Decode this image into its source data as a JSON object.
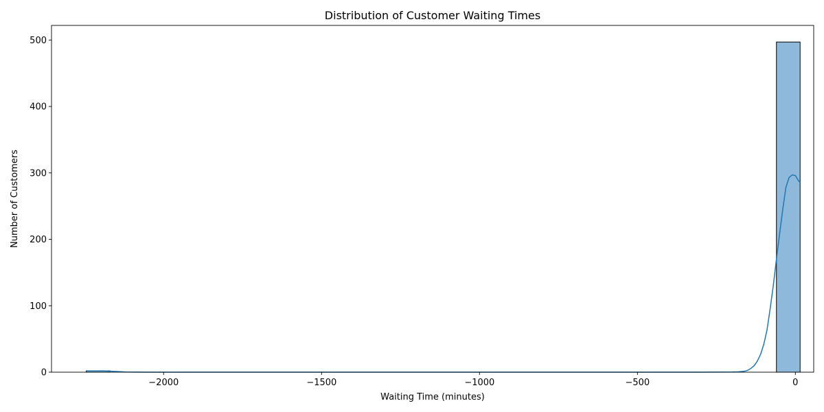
{
  "chart_data": {
    "type": "histogram",
    "title": "Distribution of Customer Waiting Times",
    "xlabel": "Waiting Time (minutes)",
    "ylabel": "Number of Customers",
    "xlim": [
      -2355,
      58
    ],
    "ylim": [
      0,
      522
    ],
    "xticks": [
      -2000,
      -1500,
      -1000,
      -500,
      0
    ],
    "xtick_labels": [
      "−2000",
      "−1500",
      "−1000",
      "−500",
      "0"
    ],
    "yticks": [
      0,
      100,
      200,
      300,
      400,
      500
    ],
    "ytick_labels": [
      "0",
      "100",
      "200",
      "300",
      "400",
      "500"
    ],
    "grid": false,
    "colors": {
      "bar_fill": "#8fb9da",
      "bar_edge": "#000000",
      "kde_line": "#1f77b4"
    },
    "bins": [
      {
        "x0": -2245,
        "x1": -2170,
        "count": 2
      },
      {
        "x0": -60,
        "x1": 15,
        "count": 497
      }
    ],
    "kde": {
      "x": [
        -2245,
        -2215,
        -2190,
        -2170,
        -2150,
        -2120,
        -2050,
        -1000,
        -300,
        -200,
        -180,
        -160,
        -150,
        -140,
        -130,
        -120,
        -110,
        -100,
        -90,
        -80,
        -70,
        -60,
        -50,
        -40,
        -30,
        -20,
        -10,
        0,
        5,
        10,
        15
      ],
      "y": [
        2,
        2,
        2,
        1.5,
        1,
        0.3,
        0.05,
        0,
        0,
        0.2,
        0.5,
        1.5,
        3,
        6,
        10,
        17,
        27,
        42,
        63,
        95,
        130,
        170,
        208,
        245,
        278,
        293,
        297,
        296,
        292,
        288,
        286
      ]
    }
  }
}
